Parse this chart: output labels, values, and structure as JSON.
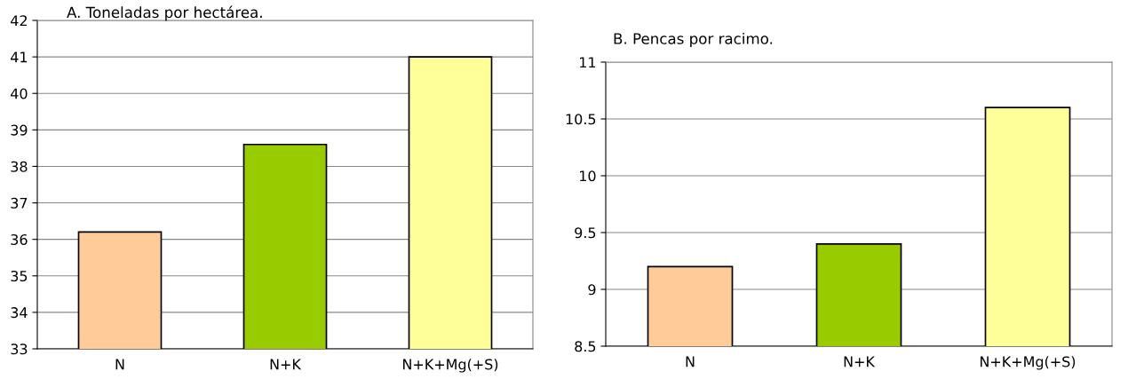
{
  "chart_data": [
    {
      "type": "bar",
      "title": "A. Toneladas por hectárea.",
      "categories": [
        "N",
        "N+K",
        "N+K+Mg(+S)"
      ],
      "values": [
        36.2,
        38.6,
        41
      ],
      "colors": [
        "#ffcc99",
        "#99cc00",
        "#ffff99"
      ],
      "ylim": [
        33,
        42
      ],
      "yticks": [
        33,
        34,
        35,
        36,
        37,
        38,
        39,
        40,
        41,
        42
      ],
      "grid": "y"
    },
    {
      "type": "bar",
      "title": "B. Pencas por racimo.",
      "categories": [
        "N",
        "N+K",
        "N+K+Mg(+S)"
      ],
      "values": [
        9.2,
        9.4,
        10.6
      ],
      "colors": [
        "#ffcc99",
        "#99cc00",
        "#ffff99"
      ],
      "ylim": [
        8.5,
        11
      ],
      "yticks": [
        8.5,
        9,
        9.5,
        10,
        10.5,
        11
      ],
      "grid": "y"
    }
  ]
}
